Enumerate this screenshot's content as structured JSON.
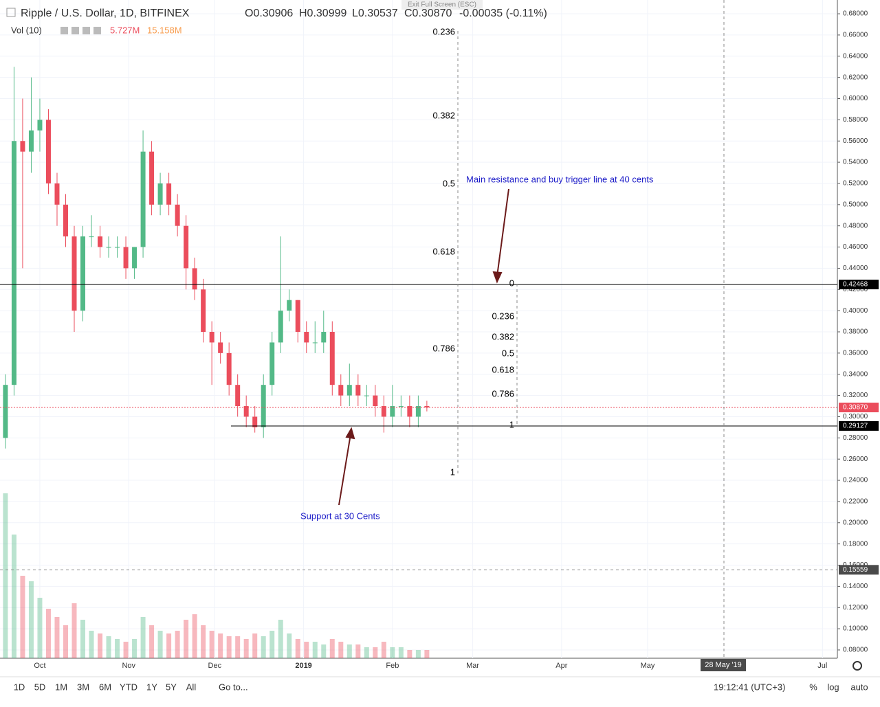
{
  "header": {
    "symbol": "Ripple / U.S. Dollar, 1D, BITFINEX",
    "open": "O0.30906",
    "high": "H0.30999",
    "low": "L0.30537",
    "close": "C0.30870",
    "change": "-0.00035 (-0.11%)",
    "exit": "Exit Full Screen (ESC)",
    "vol_label": "Vol (10)",
    "vol_value": "5.727M",
    "vol_ma": "15.158M"
  },
  "chart_data": {
    "type": "candlestick",
    "x": [
      -12,
      -9,
      -6,
      -3,
      0,
      3,
      6,
      9,
      12,
      15,
      18,
      21,
      24,
      27,
      30,
      33,
      36,
      39,
      42,
      45,
      48,
      51,
      54,
      57,
      60,
      63,
      66,
      69,
      72,
      75,
      78,
      81,
      84,
      87,
      90,
      93,
      96,
      99,
      102,
      105,
      108,
      111,
      114,
      117,
      120,
      123,
      126,
      129,
      132,
      135
    ],
    "open": [
      0.28,
      0.33,
      0.56,
      0.55,
      0.57,
      0.58,
      0.52,
      0.5,
      0.47,
      0.4,
      0.47,
      0.47,
      0.46,
      0.46,
      0.46,
      0.44,
      0.46,
      0.55,
      0.5,
      0.52,
      0.5,
      0.48,
      0.44,
      0.42,
      0.38,
      0.37,
      0.36,
      0.33,
      0.31,
      0.3,
      0.29,
      0.33,
      0.37,
      0.4,
      0.41,
      0.38,
      0.37,
      0.37,
      0.38,
      0.33,
      0.32,
      0.33,
      0.32,
      0.32,
      0.31,
      0.3,
      0.31,
      0.31,
      0.3,
      0.31
    ],
    "high": [
      0.34,
      0.63,
      0.6,
      0.62,
      0.6,
      0.59,
      0.53,
      0.51,
      0.48,
      0.48,
      0.49,
      0.48,
      0.47,
      0.47,
      0.47,
      0.46,
      0.57,
      0.56,
      0.53,
      0.53,
      0.51,
      0.49,
      0.45,
      0.43,
      0.39,
      0.38,
      0.37,
      0.34,
      0.32,
      0.31,
      0.34,
      0.38,
      0.47,
      0.42,
      0.41,
      0.39,
      0.39,
      0.4,
      0.39,
      0.34,
      0.35,
      0.34,
      0.33,
      0.33,
      0.32,
      0.33,
      0.32,
      0.32,
      0.32,
      0.315
    ],
    "low": [
      0.27,
      0.32,
      0.44,
      0.53,
      0.55,
      0.51,
      0.48,
      0.46,
      0.38,
      0.39,
      0.46,
      0.45,
      0.45,
      0.45,
      0.43,
      0.43,
      0.45,
      0.49,
      0.49,
      0.49,
      0.47,
      0.42,
      0.41,
      0.37,
      0.33,
      0.35,
      0.32,
      0.3,
      0.29,
      0.285,
      0.28,
      0.32,
      0.36,
      0.39,
      0.37,
      0.36,
      0.36,
      0.36,
      0.32,
      0.31,
      0.31,
      0.31,
      0.31,
      0.3,
      0.285,
      0.29,
      0.3,
      0.29,
      0.29,
      0.305
    ],
    "close": [
      0.33,
      0.56,
      0.55,
      0.57,
      0.58,
      0.52,
      0.5,
      0.47,
      0.4,
      0.47,
      0.47,
      0.46,
      0.46,
      0.46,
      0.44,
      0.46,
      0.55,
      0.5,
      0.52,
      0.5,
      0.48,
      0.44,
      0.42,
      0.38,
      0.37,
      0.36,
      0.33,
      0.31,
      0.3,
      0.29,
      0.33,
      0.37,
      0.4,
      0.41,
      0.38,
      0.37,
      0.37,
      0.38,
      0.33,
      0.32,
      0.33,
      0.32,
      0.32,
      0.31,
      0.3,
      0.31,
      0.31,
      0.3,
      0.31,
      0.3087
    ],
    "volume": [
      60,
      45,
      30,
      28,
      22,
      18,
      15,
      12,
      20,
      14,
      10,
      9,
      8,
      7,
      6,
      7,
      15,
      12,
      10,
      9,
      10,
      14,
      16,
      12,
      10,
      9,
      8,
      8,
      7,
      9,
      8,
      10,
      14,
      9,
      7,
      6,
      6,
      5,
      7,
      6,
      5,
      5,
      4,
      4,
      6,
      4,
      4,
      3,
      3,
      3
    ],
    "up_color": "#53b987",
    "down_color": "#eb4d5c",
    "xlim": [
      -13.9,
      278.2
    ],
    "xticks": [
      {
        "value": 0,
        "label": "Oct"
      },
      {
        "value": 31,
        "label": "Nov"
      },
      {
        "value": 61,
        "label": "Dec"
      },
      {
        "value": 92,
        "label": "2019"
      },
      {
        "value": 123,
        "label": "Feb"
      },
      {
        "value": 151,
        "label": "Mar"
      },
      {
        "value": 182,
        "label": "Apr"
      },
      {
        "value": 212,
        "label": "May"
      },
      {
        "value": 273,
        "label": "Jul"
      }
    ],
    "ylim": [
      0.0722,
      0.693
    ],
    "yticks": [
      {
        "value": 0.08,
        "label": "0.08000"
      },
      {
        "value": 0.1,
        "label": "0.10000"
      },
      {
        "value": 0.12,
        "label": "0.12000"
      },
      {
        "value": 0.14,
        "label": "0.14000"
      },
      {
        "value": 0.16,
        "label": "0.16000"
      },
      {
        "value": 0.18,
        "label": "0.18000"
      },
      {
        "value": 0.2,
        "label": "0.20000"
      },
      {
        "value": 0.22,
        "label": "0.22000"
      },
      {
        "value": 0.24,
        "label": "0.24000"
      },
      {
        "value": 0.26,
        "label": "0.26000"
      },
      {
        "value": 0.28,
        "label": "0.28000"
      },
      {
        "value": 0.3,
        "label": "0.30000"
      },
      {
        "value": 0.32,
        "label": "0.32000"
      },
      {
        "value": 0.34,
        "label": "0.34000"
      },
      {
        "value": 0.36,
        "label": "0.36000"
      },
      {
        "value": 0.38,
        "label": "0.38000"
      },
      {
        "value": 0.4,
        "label": "0.40000"
      },
      {
        "value": 0.42,
        "label": "0.42000"
      },
      {
        "value": 0.44,
        "label": "0.44000"
      },
      {
        "value": 0.46,
        "label": "0.46000"
      },
      {
        "value": 0.48,
        "label": "0.48000"
      },
      {
        "value": 0.5,
        "label": "0.50000"
      },
      {
        "value": 0.52,
        "label": "0.52000"
      },
      {
        "value": 0.54,
        "label": "0.54000"
      },
      {
        "value": 0.56,
        "label": "0.56000"
      },
      {
        "value": 0.58,
        "label": "0.58000"
      },
      {
        "value": 0.6,
        "label": "0.60000"
      },
      {
        "value": 0.62,
        "label": "0.62000"
      },
      {
        "value": 0.64,
        "label": "0.64000"
      },
      {
        "value": 0.66,
        "label": "0.66000"
      },
      {
        "value": 0.68,
        "label": "0.68000"
      }
    ],
    "grid": true,
    "levels": [
      {
        "value": 0.42468,
        "label": "0.42468",
        "color": "#000000"
      },
      {
        "value": 0.29127,
        "label": "0.29127",
        "color": "#000000"
      },
      {
        "value": 0.3087,
        "label": "0.30870",
        "color": "#eb4d5c"
      },
      {
        "value": 0.15559,
        "label": "0.15559",
        "color": "#4a4a4a"
      }
    ],
    "crosshair_date": "28 May '19",
    "fib_left": [
      "0.236",
      "0.382",
      "0.5",
      "0.618",
      "0.786",
      "1"
    ],
    "fib_right": [
      "0",
      "0.236",
      "0.382",
      "0.5",
      "0.618",
      "0.786",
      "1"
    ],
    "annotations": [
      "Main resistance and buy trigger line at 40 cents",
      "Support at 30 Cents"
    ]
  },
  "toolbar": {
    "ranges": [
      "1D",
      "5D",
      "1M",
      "3M",
      "6M",
      "YTD",
      "1Y",
      "5Y",
      "All"
    ],
    "goto": "Go to...",
    "time": "19:12:41 (UTC+3)",
    "percent": "%",
    "log": "log",
    "auto": "auto"
  }
}
